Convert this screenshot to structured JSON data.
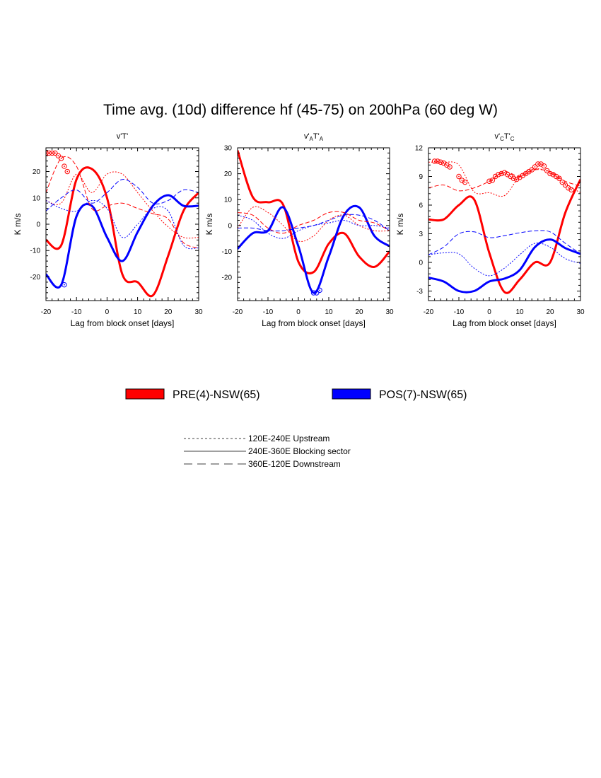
{
  "figure": {
    "title": "Time avg. (10d)  difference hf (45-75) on 200hPa (60 deg W)"
  },
  "colors": {
    "pre": "#ff0000",
    "pos": "#0000ff"
  },
  "legend_series": [
    {
      "label": "PRE(4)-NSW(65)",
      "color": "#ff0000"
    },
    {
      "label": "POS(7)-NSW(65)",
      "color": "#0000ff"
    }
  ],
  "legend_lines": [
    {
      "label": "120E-240E Upstream",
      "style": "dotted"
    },
    {
      "label": "240E-360E Blocking sector",
      "style": "solid"
    },
    {
      "label": "360E-120E Downstream",
      "style": "dashed"
    }
  ],
  "chart_data": [
    {
      "type": "line",
      "title_parts": [
        "v'T'"
      ],
      "xlabel": "Lag from block onset [days]",
      "ylabel": "K m/s",
      "xlim": [
        -20,
        30
      ],
      "ylim": [
        -29,
        29
      ],
      "xticks": [
        -20,
        -10,
        0,
        10,
        20,
        30
      ],
      "xtick_labels": [
        "-20",
        "-10",
        "0",
        "10",
        "20",
        "30"
      ],
      "yticks": [
        -20,
        -10,
        0,
        10,
        20
      ],
      "ytick_labels": [
        "-20",
        "-10",
        "0",
        "10",
        "20"
      ],
      "x": [
        -20,
        -15,
        -10,
        -5,
        0,
        5,
        10,
        15,
        20,
        25,
        30
      ],
      "series": [
        {
          "color": "red",
          "style": "solid",
          "values": [
            -6,
            -8,
            17,
            21,
            10,
            -19,
            -22,
            -27,
            -12,
            5,
            12
          ]
        },
        {
          "color": "blue",
          "style": "solid",
          "values": [
            -19,
            -23,
            3,
            7,
            -5,
            -14,
            -3,
            7,
            11,
            7,
            7
          ]
        },
        {
          "color": "red",
          "style": "dotted",
          "values": [
            9,
            8,
            19,
            12,
            19,
            19,
            12,
            5,
            -1,
            -5,
            -5
          ]
        },
        {
          "color": "red",
          "style": "dashed",
          "values": [
            12,
            25,
            22,
            6,
            7,
            8,
            6,
            4,
            2,
            -7,
            -9
          ]
        },
        {
          "color": "blue",
          "style": "dotted",
          "values": [
            9,
            6,
            5,
            9,
            6,
            -5,
            0,
            6,
            5,
            -8,
            -9
          ]
        },
        {
          "color": "blue",
          "style": "dashed",
          "values": [
            5,
            10,
            13,
            8,
            12,
            17,
            14,
            8,
            9,
            13,
            12
          ]
        }
      ],
      "marker_points": [
        {
          "color": "red",
          "x": [
            -20,
            -19,
            -18,
            -17,
            -16,
            -15,
            -14,
            -13
          ],
          "y": [
            27,
            27,
            27,
            27,
            26,
            25,
            22,
            20
          ]
        },
        {
          "color": "blue",
          "x": [
            -14
          ],
          "y": [
            -23
          ]
        }
      ]
    },
    {
      "type": "line",
      "title_parts": [
        "v'",
        "A",
        "T'",
        "A"
      ],
      "xlabel": "Lag from block onset [days]",
      "ylabel": "K m/s",
      "xlim": [
        -20,
        30
      ],
      "ylim": [
        -29,
        30
      ],
      "xticks": [
        -20,
        -10,
        0,
        10,
        20,
        30
      ],
      "xtick_labels": [
        "-20",
        "-10",
        "0",
        "10",
        "20",
        "30"
      ],
      "yticks": [
        -20,
        -10,
        0,
        10,
        20,
        30
      ],
      "ytick_labels": [
        "-20",
        "-10",
        "0",
        "10",
        "20",
        "30"
      ],
      "x": [
        -20,
        -15,
        -10,
        -5,
        0,
        5,
        10,
        15,
        20,
        25,
        30
      ],
      "series": [
        {
          "color": "red",
          "style": "solid",
          "values": [
            29,
            11,
            9,
            8,
            -14,
            -18,
            -7,
            -3,
            -12,
            -16,
            -10
          ]
        },
        {
          "color": "blue",
          "style": "solid",
          "values": [
            -9,
            -3,
            -2,
            7,
            -8,
            -26,
            -12,
            4,
            7,
            -4,
            -8
          ]
        },
        {
          "color": "red",
          "style": "dotted",
          "values": [
            -1,
            7,
            5,
            0,
            -6,
            -4,
            2,
            4,
            0,
            -2,
            -2
          ]
        },
        {
          "color": "red",
          "style": "dashed",
          "values": [
            5,
            4,
            -1,
            -3,
            0,
            2,
            5,
            5,
            2,
            1,
            -2
          ]
        },
        {
          "color": "blue",
          "style": "dotted",
          "values": [
            4,
            2,
            -3,
            -5,
            -2,
            0,
            1,
            2,
            0,
            0,
            -1
          ]
        },
        {
          "color": "blue",
          "style": "dashed",
          "values": [
            -1,
            -1,
            -2,
            -2,
            -1,
            0,
            2,
            4,
            4,
            2,
            -2
          ]
        }
      ],
      "marker_points": [
        {
          "color": "blue",
          "x": [
            5,
            6,
            7
          ],
          "y": [
            -26,
            -26,
            -25
          ]
        }
      ]
    },
    {
      "type": "line",
      "title_parts": [
        "v'",
        "C",
        "T'",
        "C"
      ],
      "xlabel": "Lag from block onset [days]",
      "ylabel": "K m/s",
      "xlim": [
        -20,
        30
      ],
      "ylim": [
        -4,
        12
      ],
      "xticks": [
        -20,
        -10,
        0,
        10,
        20,
        30
      ],
      "xtick_labels": [
        "-20",
        "-10",
        "0",
        "10",
        "20",
        "30"
      ],
      "yticks": [
        -3,
        0,
        3,
        6,
        9,
        12
      ],
      "ytick_labels": [
        "-3",
        "0",
        "3",
        "6",
        "9",
        "12"
      ],
      "x": [
        -20,
        -15,
        -10,
        -5,
        0,
        5,
        10,
        15,
        20,
        25,
        30
      ],
      "series": [
        {
          "color": "red",
          "style": "solid",
          "values": [
            4.5,
            4.5,
            6.0,
            6.6,
            1.0,
            -3.1,
            -1.8,
            0.0,
            0.0,
            5.2,
            8.7
          ]
        },
        {
          "color": "blue",
          "style": "solid",
          "values": [
            -1.6,
            -2.0,
            -3.0,
            -3.0,
            -2.0,
            -1.7,
            -0.8,
            1.6,
            2.4,
            1.5,
            0.9
          ]
        },
        {
          "color": "red",
          "style": "dotted",
          "values": [
            10.5,
            10.5,
            10.2,
            7.4,
            7.3,
            7.0,
            9.0,
            9.8,
            9.4,
            8.2,
            7.3
          ]
        },
        {
          "color": "red",
          "style": "dashed",
          "values": [
            7.8,
            8.1,
            7.5,
            7.8,
            8.5,
            9.5,
            9.0,
            9.7,
            9.5,
            8.5,
            8.0
          ]
        },
        {
          "color": "blue",
          "style": "dotted",
          "values": [
            0.8,
            1.0,
            0.9,
            -0.6,
            -1.4,
            -0.6,
            0.8,
            2.0,
            1.6,
            0.4,
            -0.1
          ]
        },
        {
          "color": "blue",
          "style": "dashed",
          "values": [
            0.8,
            1.6,
            3.0,
            3.2,
            2.6,
            2.8,
            3.1,
            3.3,
            3.2,
            2.0,
            0.9
          ]
        }
      ],
      "marker_points": [
        {
          "color": "red",
          "x": [
            -18,
            -17,
            -16,
            -15,
            -14,
            -13,
            -10,
            -9,
            -8
          ],
          "y": [
            10.6,
            10.6,
            10.5,
            10.4,
            10.2,
            10.0,
            9.0,
            8.6,
            8.4
          ]
        },
        {
          "color": "red",
          "x": [
            0,
            1,
            2,
            3,
            4,
            5,
            6,
            7,
            8,
            9,
            10,
            11,
            12,
            13,
            14,
            15,
            16,
            17,
            18,
            19,
            20,
            21,
            22,
            23,
            24,
            25,
            26,
            27
          ],
          "y": [
            8.5,
            8.6,
            9.0,
            9.2,
            9.3,
            9.4,
            9.2,
            9.0,
            8.8,
            8.7,
            8.9,
            9.1,
            9.3,
            9.5,
            9.7,
            10.0,
            10.3,
            10.3,
            10.1,
            9.6,
            9.3,
            9.2,
            9.0,
            8.8,
            8.4,
            8.1,
            7.8,
            7.6
          ]
        }
      ]
    }
  ]
}
